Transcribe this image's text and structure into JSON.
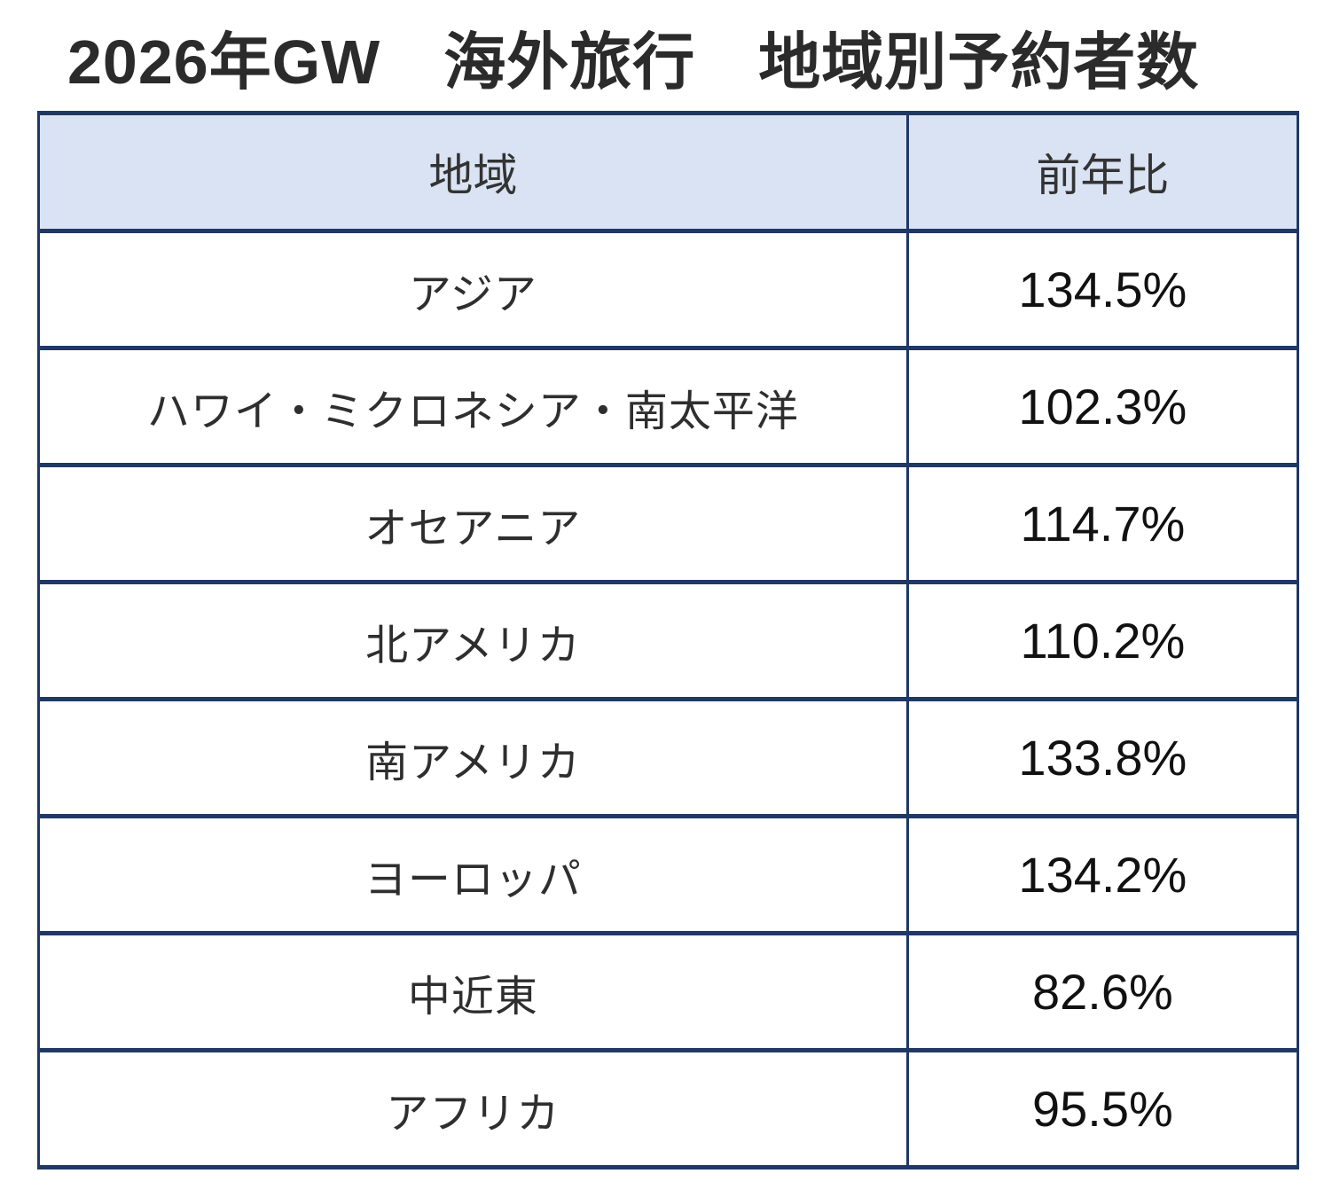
{
  "title": "2026年GW　海外旅行　地域別予約者数",
  "table": {
    "columns": {
      "region": "地域",
      "yoy": "前年比"
    },
    "rows": [
      {
        "region": "アジア",
        "yoy": "134.5%"
      },
      {
        "region": "ハワイ・ミクロネシア・南太平洋",
        "yoy": "102.3%"
      },
      {
        "region": "オセアニア",
        "yoy": "114.7%"
      },
      {
        "region": "北アメリカ",
        "yoy": "110.2%"
      },
      {
        "region": "南アメリカ",
        "yoy": "133.8%"
      },
      {
        "region": "ヨーロッパ",
        "yoy": "134.2%"
      },
      {
        "region": "中近東",
        "yoy": "82.6%"
      },
      {
        "region": "アフリカ",
        "yoy": "95.5%"
      }
    ]
  },
  "colors": {
    "border": "#1f3864",
    "header_bg": "#dae3f3",
    "title_text": "#2b2b2b",
    "body_text": "#2e2e2e",
    "number_text": "#111111"
  },
  "chart_data": {
    "type": "table",
    "title": "2026年GW　海外旅行　地域別予約者数",
    "columns": [
      "地域",
      "前年比"
    ],
    "categories": [
      "アジア",
      "ハワイ・ミクロネシア・南太平洋",
      "オセアニア",
      "北アメリカ",
      "南アメリカ",
      "ヨーロッパ",
      "中近東",
      "アフリカ"
    ],
    "values_percent": [
      134.5,
      102.3,
      114.7,
      110.2,
      133.8,
      134.2,
      82.6,
      95.5
    ],
    "value_unit": "%",
    "notes": "前年比 (year-over-year ratio) of overseas travel bookings by region for Golden Week 2026"
  }
}
